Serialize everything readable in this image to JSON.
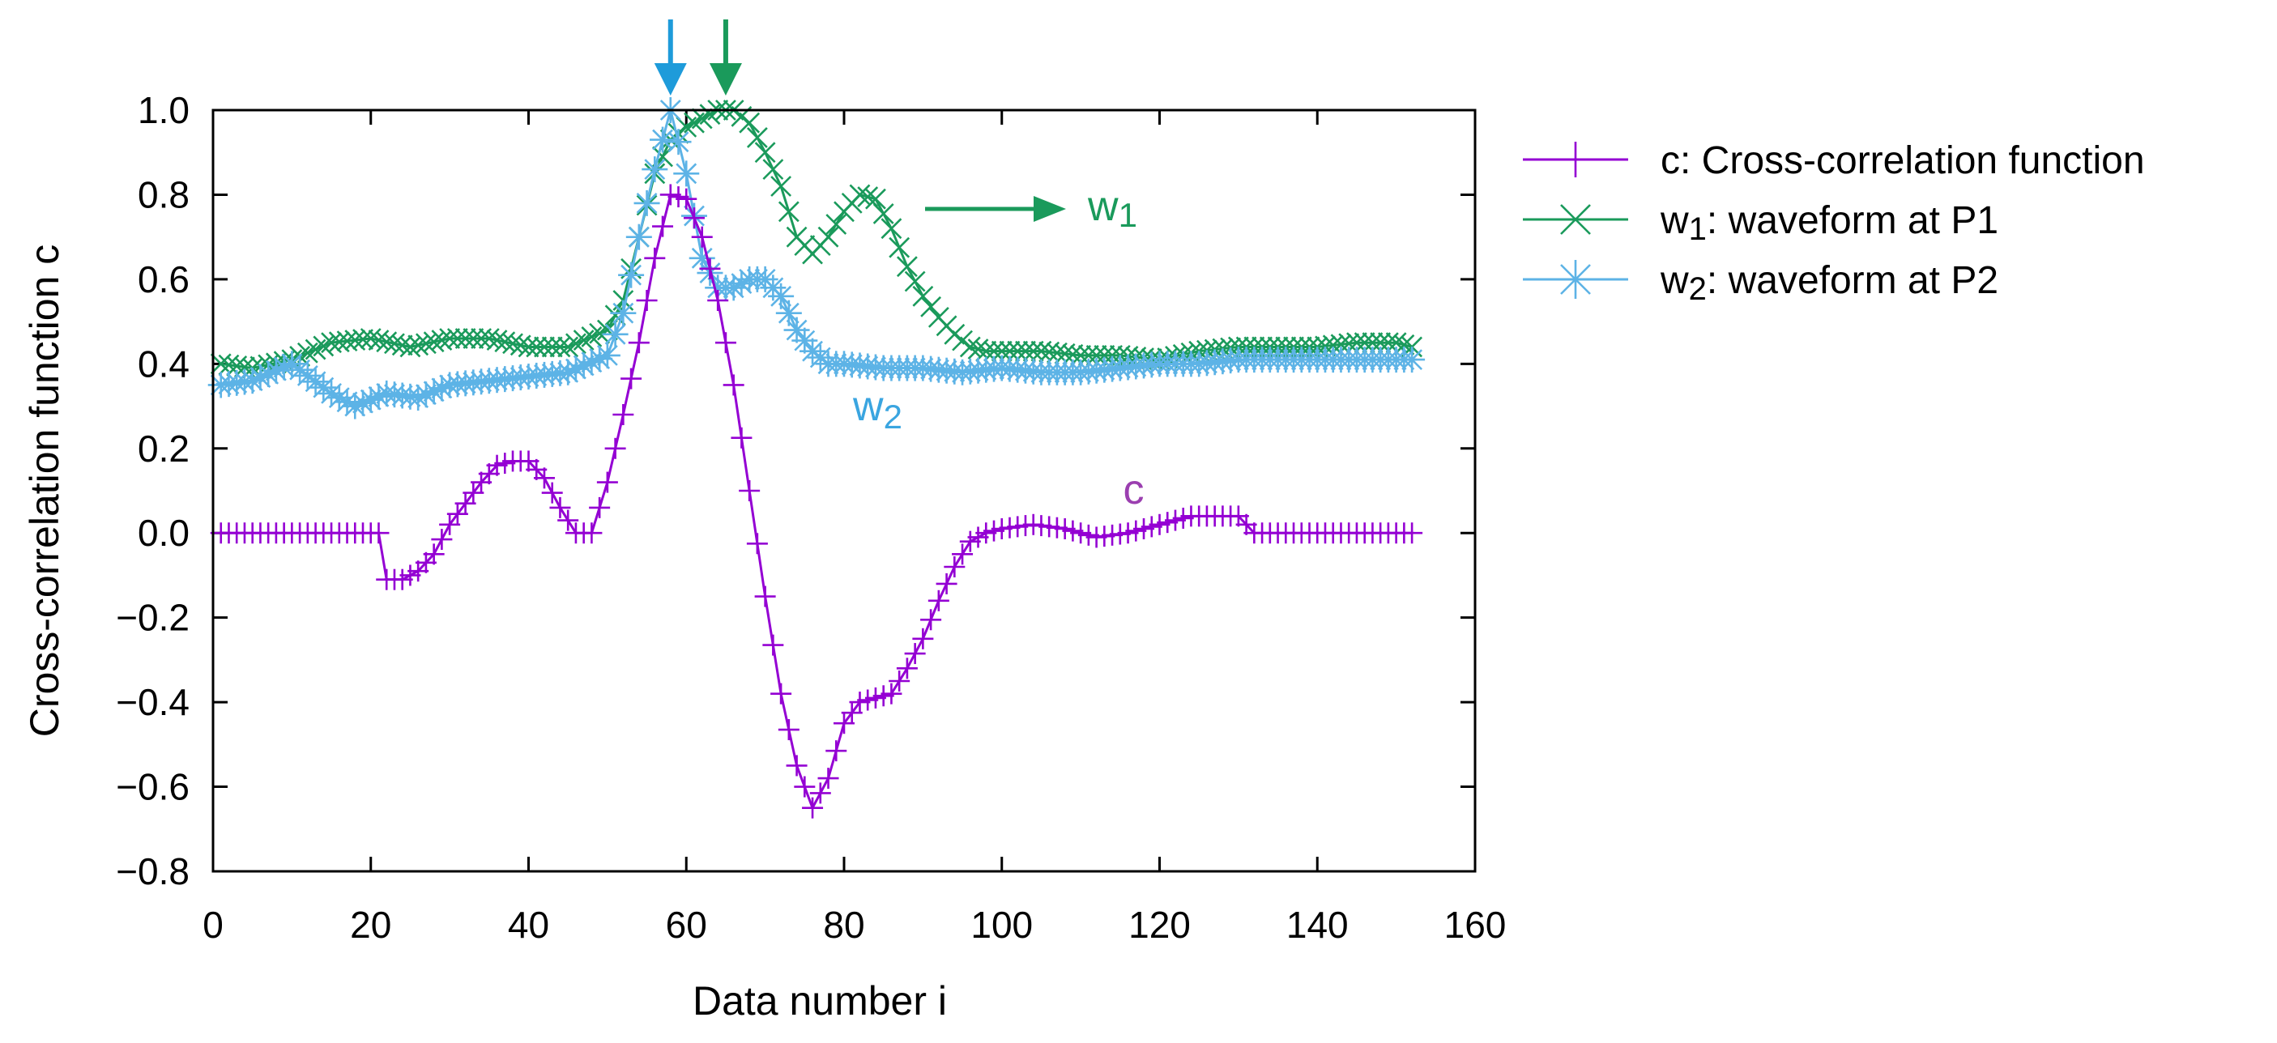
{
  "chart_data": {
    "type": "line",
    "title": "",
    "xlabel": "Data number i",
    "ylabel": "Cross-correlation function c",
    "xlim": [
      0,
      160
    ],
    "ylim": [
      -0.8,
      1.0
    ],
    "x_ticks": [
      "0",
      "20",
      "40",
      "60",
      "80",
      "100",
      "120",
      "140",
      "160"
    ],
    "y_ticks": [
      "−0.8",
      "−0.6",
      "−0.4",
      "−0.2",
      "0.0",
      "0.2",
      "0.4",
      "0.6",
      "0.8",
      "1.0"
    ],
    "x_tick_values": [
      0,
      20,
      40,
      60,
      80,
      100,
      120,
      140,
      160
    ],
    "y_tick_values": [
      -0.8,
      -0.6,
      -0.4,
      -0.2,
      0.0,
      0.2,
      0.4,
      0.6,
      0.8,
      1.0
    ],
    "grid": false,
    "legend_position": "outside-right",
    "series": [
      {
        "id": "c",
        "name": "c: Cross-correlation function",
        "legend_main": "c: Cross-correlation function",
        "legend_sub": "",
        "color": "#9400D3",
        "marker": "plus",
        "x": [
          1,
          3,
          5,
          7,
          9,
          11,
          13,
          15,
          17,
          19,
          21,
          22,
          24,
          26,
          28,
          30,
          32,
          34,
          36,
          38,
          40,
          42,
          44,
          46,
          48,
          50,
          52,
          54,
          56,
          58,
          60,
          62,
          64,
          66,
          68,
          70,
          72,
          74,
          76,
          78,
          80,
          82,
          84,
          86,
          88,
          90,
          92,
          94,
          96,
          98,
          100,
          104,
          108,
          112,
          116,
          120,
          124,
          128,
          130,
          132,
          136,
          140,
          144,
          148,
          152
        ],
        "y": [
          0,
          0,
          0,
          0,
          0,
          0,
          0,
          0,
          0,
          0,
          0,
          -0.11,
          -0.11,
          -0.09,
          -0.05,
          0.02,
          0.07,
          0.12,
          0.16,
          0.17,
          0.17,
          0.13,
          0.06,
          0.0,
          0.0,
          0.12,
          0.28,
          0.45,
          0.65,
          0.8,
          0.79,
          0.7,
          0.55,
          0.35,
          0.1,
          -0.15,
          -0.38,
          -0.55,
          -0.65,
          -0.58,
          -0.45,
          -0.4,
          -0.39,
          -0.38,
          -0.32,
          -0.25,
          -0.16,
          -0.08,
          -0.02,
          0.0,
          0.01,
          0.02,
          0.01,
          -0.01,
          0.0,
          0.02,
          0.04,
          0.04,
          0.04,
          0.0,
          0.0,
          0.0,
          0.0,
          0.0,
          0.0
        ]
      },
      {
        "id": "w1",
        "name": "w1: waveform at P1",
        "legend_main": "w",
        "legend_sub": "1",
        "legend_rest": ": waveform at P1",
        "color": "#1A9A5B",
        "marker": "x",
        "x": [
          1,
          5,
          10,
          15,
          20,
          25,
          30,
          35,
          40,
          45,
          50,
          52,
          54,
          56,
          58,
          60,
          62,
          64,
          66,
          68,
          70,
          72,
          74,
          76,
          78,
          80,
          82,
          84,
          86,
          88,
          90,
          92,
          94,
          96,
          98,
          100,
          105,
          110,
          115,
          120,
          125,
          130,
          135,
          140,
          145,
          150,
          152
        ],
        "y": [
          0.4,
          0.39,
          0.41,
          0.45,
          0.46,
          0.44,
          0.46,
          0.46,
          0.44,
          0.44,
          0.48,
          0.55,
          0.7,
          0.85,
          0.93,
          0.96,
          0.98,
          1.0,
          1.0,
          0.97,
          0.9,
          0.82,
          0.7,
          0.66,
          0.7,
          0.76,
          0.8,
          0.79,
          0.72,
          0.63,
          0.56,
          0.51,
          0.47,
          0.44,
          0.43,
          0.43,
          0.43,
          0.42,
          0.42,
          0.41,
          0.43,
          0.44,
          0.44,
          0.44,
          0.45,
          0.45,
          0.44
        ]
      },
      {
        "id": "w2",
        "name": "w2: waveform at P2",
        "legend_main": "w",
        "legend_sub": "2",
        "legend_rest": ": waveform at P2",
        "color": "#5DB3E6",
        "marker": "star",
        "x": [
          1,
          5,
          10,
          15,
          18,
          22,
          26,
          30,
          35,
          40,
          45,
          50,
          52,
          54,
          56,
          58,
          60,
          62,
          64,
          66,
          68,
          70,
          72,
          74,
          76,
          78,
          80,
          85,
          90,
          95,
          100,
          105,
          110,
          115,
          120,
          125,
          130,
          135,
          140,
          145,
          150,
          152
        ],
        "y": [
          0.35,
          0.36,
          0.4,
          0.33,
          0.3,
          0.33,
          0.32,
          0.35,
          0.36,
          0.37,
          0.38,
          0.42,
          0.52,
          0.7,
          0.86,
          1.0,
          0.85,
          0.65,
          0.58,
          0.58,
          0.6,
          0.6,
          0.56,
          0.48,
          0.43,
          0.4,
          0.4,
          0.39,
          0.39,
          0.38,
          0.39,
          0.38,
          0.38,
          0.39,
          0.4,
          0.4,
          0.41,
          0.41,
          0.41,
          0.41,
          0.41,
          0.41
        ]
      }
    ],
    "annotations": {
      "c_label": {
        "text": "c",
        "x": 101,
        "y": 0.1
      },
      "w1_label_main": "w",
      "w1_label_sub": "1",
      "w2_label_main": "w",
      "w2_label_sub": "2",
      "w2_label_pos": {
        "x": 83,
        "y": 0.27
      },
      "w1_arrow": {
        "from_x": 90,
        "to_x": 108,
        "y": 0.77
      },
      "w1_label_pos": {
        "x": 111,
        "y": 0.77
      },
      "peak_arrow_w2": {
        "x": 58,
        "color": "#1E9BDA"
      },
      "peak_arrow_w1": {
        "x": 65,
        "color": "#1A9A5B"
      }
    }
  }
}
